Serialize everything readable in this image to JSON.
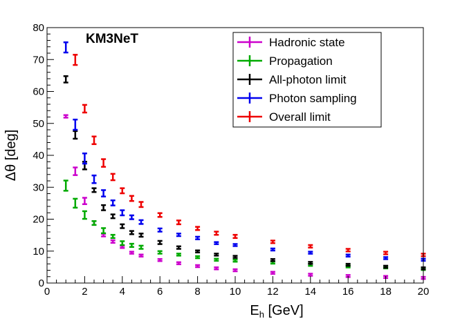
{
  "chart_data": {
    "type": "scatter",
    "annotation": "KM3NeT",
    "xlabel_main": "E",
    "xlabel_sub": "h",
    "xlabel_unit": " [GeV]",
    "ylabel": "Δθ [deg]",
    "xlim": [
      0,
      20
    ],
    "ylim": [
      0,
      80
    ],
    "x_ticks": [
      0,
      2,
      4,
      6,
      8,
      10,
      12,
      14,
      16,
      18,
      20
    ],
    "y_ticks": [
      0,
      10,
      20,
      30,
      40,
      50,
      60,
      70,
      80
    ],
    "grid": false,
    "legend_position": "top-right",
    "x": [
      1,
      1.5,
      2,
      2.5,
      3,
      3.5,
      4,
      4.5,
      5,
      6,
      7,
      8,
      9,
      10,
      12,
      14,
      16,
      18,
      20
    ],
    "series": [
      {
        "name": "Hadronic state",
        "color": "#cc00cc",
        "values": [
          52.2,
          35.0,
          25.7,
          18.8,
          15.0,
          13.0,
          11.3,
          9.5,
          8.6,
          7.2,
          6.2,
          5.3,
          4.6,
          4.0,
          3.2,
          2.6,
          2.2,
          1.9,
          1.6
        ],
        "errors": [
          0.4,
          1.2,
          1.0,
          0.6,
          0.4,
          0.4,
          0.3,
          0.3,
          0.3,
          0.3,
          0.3,
          0.3,
          0.3,
          0.3,
          0.2,
          0.2,
          0.2,
          0.2,
          0.2
        ]
      },
      {
        "name": "Propagation",
        "color": "#00aa00",
        "values": [
          30.5,
          25.0,
          21.3,
          18.8,
          16.4,
          14.6,
          12.5,
          11.8,
          11.2,
          9.6,
          8.9,
          8.1,
          7.3,
          7.0,
          6.4,
          5.7,
          5.2,
          4.9,
          4.4
        ],
        "errors": [
          1.6,
          1.4,
          1.2,
          0.6,
          0.8,
          0.5,
          0.6,
          0.5,
          0.5,
          0.4,
          0.3,
          0.3,
          0.3,
          0.3,
          0.3,
          0.3,
          0.3,
          0.3,
          0.3
        ]
      },
      {
        "name": "All-photon limit",
        "color": "#000000",
        "values": [
          63.8,
          46.4,
          36.8,
          29.1,
          23.6,
          20.9,
          17.8,
          15.8,
          15.0,
          12.7,
          11.1,
          9.9,
          8.9,
          8.2,
          7.2,
          6.3,
          5.7,
          5.1,
          4.6
        ],
        "errors": [
          1.0,
          1.2,
          1.2,
          0.6,
          0.8,
          0.6,
          0.6,
          0.5,
          0.5,
          0.5,
          0.4,
          0.3,
          0.3,
          0.3,
          0.3,
          0.3,
          0.3,
          0.3,
          0.3
        ]
      },
      {
        "name": "Photon sampling",
        "color": "#0000ee",
        "values": [
          73.8,
          49.6,
          39.0,
          32.5,
          28.1,
          25.1,
          22.0,
          20.6,
          19.1,
          16.6,
          15.1,
          14.1,
          12.5,
          11.9,
          10.5,
          9.5,
          8.6,
          7.8,
          7.3
        ],
        "errors": [
          1.6,
          1.6,
          1.6,
          1.2,
          1.0,
          0.8,
          0.8,
          0.6,
          0.6,
          0.5,
          0.4,
          0.4,
          0.3,
          0.3,
          0.3,
          0.3,
          0.3,
          0.3,
          0.3
        ]
      },
      {
        "name": "Overall limit",
        "color": "#ee0000",
        "values": [
          null,
          69.9,
          54.6,
          44.7,
          37.6,
          33.2,
          28.9,
          26.5,
          24.6,
          21.3,
          19.0,
          17.1,
          15.6,
          14.6,
          12.9,
          11.5,
          10.3,
          9.4,
          8.8
        ],
        "errors": [
          null,
          1.6,
          1.2,
          1.2,
          1.2,
          1.0,
          0.8,
          0.8,
          0.8,
          0.6,
          0.6,
          0.5,
          0.5,
          0.5,
          0.4,
          0.4,
          0.4,
          0.4,
          0.4
        ]
      }
    ]
  }
}
